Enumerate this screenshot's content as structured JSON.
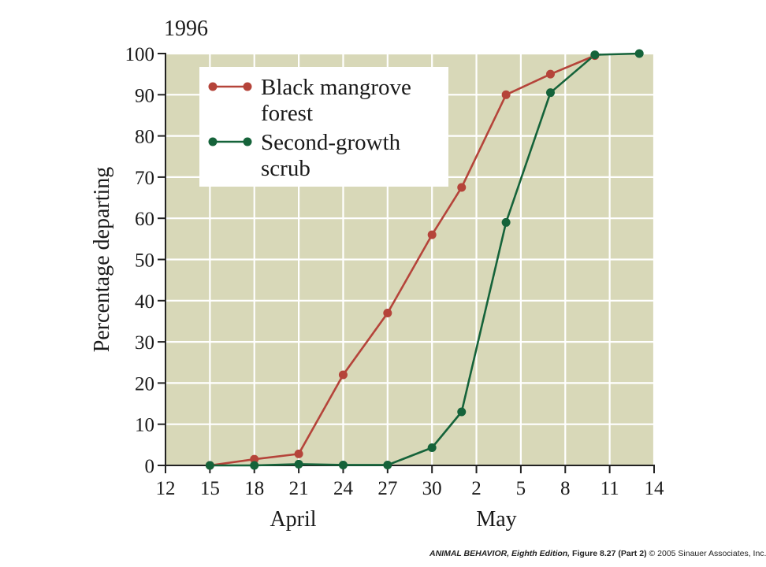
{
  "chart_data": {
    "type": "line",
    "title": "1996",
    "xlabel": "",
    "ylabel": "Percentage departing",
    "xlim": [
      12,
      14
    ],
    "ylim": [
      0,
      100
    ],
    "x_tick_labels": [
      "12",
      "15",
      "18",
      "21",
      "24",
      "27",
      "30",
      "2",
      "5",
      "8",
      "11",
      "14"
    ],
    "y_ticks": [
      0,
      10,
      20,
      30,
      40,
      50,
      60,
      70,
      80,
      90,
      100
    ],
    "month_labels": [
      "April",
      "May"
    ],
    "grid": true,
    "legend_position": "upper-left",
    "background_color": "#d8d8b8",
    "series": [
      {
        "name": "Black mangrove forest",
        "color": "#b5443a",
        "x": [
          "April 15",
          "April 18",
          "April 21",
          "April 24",
          "April 27",
          "April 30",
          "May 2",
          "May 5",
          "May 8",
          "May 11"
        ],
        "y": [
          0,
          1.5,
          2.8,
          22,
          37,
          56,
          67.5,
          90,
          95,
          99.5
        ]
      },
      {
        "name": "Second-growth scrub",
        "color": "#15633a",
        "x": [
          "April 15",
          "April 18",
          "April 21",
          "April 24",
          "April 27",
          "April 30",
          "May 2",
          "May 5",
          "May 8",
          "May 11",
          "May 14"
        ],
        "y": [
          0,
          0,
          0.3,
          0.1,
          0.1,
          4.3,
          13,
          59,
          90.5,
          99.7,
          100
        ]
      }
    ],
    "legend": [
      {
        "lines": [
          "Black mangrove",
          "forest"
        ]
      },
      {
        "lines": [
          "Second-growth",
          "scrub"
        ]
      }
    ]
  },
  "credit": {
    "book": "ANIMAL BEHAVIOR, Eighth Edition,",
    "figure": "Figure 8.27 (Part 2)",
    "copyright": "© 2005 Sinauer Associates, Inc."
  }
}
